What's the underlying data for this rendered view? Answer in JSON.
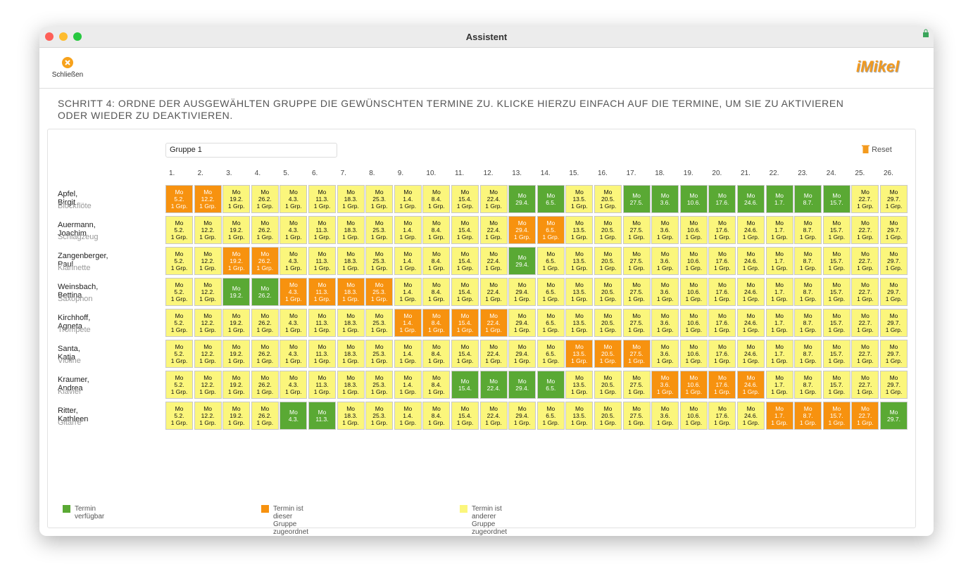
{
  "window": {
    "title": "Assistent"
  },
  "toolbar": {
    "close_label": "Schließen",
    "logo": "iMikel"
  },
  "step_text": "SCHRITT 4: ORDNE DER AUSGEWÄHLTEN GRUPPE DIE GEWÜNSCHTEN TERMINE ZU. KLICKE HIERZU EINFACH AUF DIE TERMINE, UM SIE ZU AKTIVIEREN ODER WIEDER ZU DEAKTIVIEREN.",
  "group_name": "Gruppe 1",
  "reset_label": "Reset",
  "weekday": "Mo",
  "group_count_label": "1 Grp.",
  "columns": [
    "1.",
    "2.",
    "3.",
    "4.",
    "5.",
    "6.",
    "7.",
    "8.",
    "9.",
    "10.",
    "11.",
    "12.",
    "13.",
    "14.",
    "15.",
    "16.",
    "17.",
    "18.",
    "19.",
    "20.",
    "21.",
    "22.",
    "23.",
    "24.",
    "25.",
    "26."
  ],
  "dates": [
    "5.2.",
    "12.2.",
    "19.2.",
    "26.2.",
    "4.3.",
    "11.3.",
    "18.3.",
    "25.3.",
    "1.4.",
    "8.4.",
    "15.4.",
    "22.4.",
    "29.4.",
    "6.5.",
    "13.5.",
    "20.5.",
    "27.5.",
    "3.6.",
    "10.6.",
    "17.6.",
    "24.6.",
    "1.7.",
    "8.7.",
    "15.7.",
    "22.7.",
    "29.7."
  ],
  "rows": [
    {
      "name": "Apfel, Birgit",
      "instrument": "Blockflöte",
      "states": "OOYYYYYYYYYYGGYYGGGGGGGGYY"
    },
    {
      "name": "Auermann, Joachim",
      "instrument": "Schlagzeug",
      "states": "YYYYYYYYYYYYOOYYYYYYYYYYYY"
    },
    {
      "name": "Zangenberger, Paul",
      "instrument": "Klarinette",
      "states": "YYOOYYYYYYYYGYYYYYYYYYYYYY"
    },
    {
      "name": "Weinsbach, Bettina",
      "instrument": "Saxophon",
      "states": "YYGGOOOOYYYYYYYYYYYYYYYYYY"
    },
    {
      "name": "Kirchhoff, Agneta",
      "instrument": "Trompete",
      "states": "YYYYYYYYOOOOYYYYYYYYYYYYYY"
    },
    {
      "name": "Santa, Katja",
      "instrument": "Violine",
      "states": "YYYYYYYYYYYYYYOOOYYYYYYYYY"
    },
    {
      "name": "Kraumer, Andrea",
      "instrument": "Klavier",
      "states": "YYYYYYYYYYGGGGYYYOOOOYYYYY"
    },
    {
      "name": "Ritter, Kathleen",
      "instrument": "Gitarre",
      "states": "YYYYGGYYYYYYYYYYYYYYYOOOOG"
    }
  ],
  "legend": [
    {
      "code": "G",
      "label": "Termin verfügbar",
      "color": "#5aa934",
      "text_color": "#ffffff"
    },
    {
      "code": "O",
      "label": "Termin ist dieser Gruppe zugeordnet",
      "color": "#f7920f",
      "text_color": "#ffffff"
    },
    {
      "code": "Y",
      "label": "Termin ist anderer Gruppe zugeordnet",
      "color": "#fbf67c",
      "text_color": "#111111"
    }
  ]
}
